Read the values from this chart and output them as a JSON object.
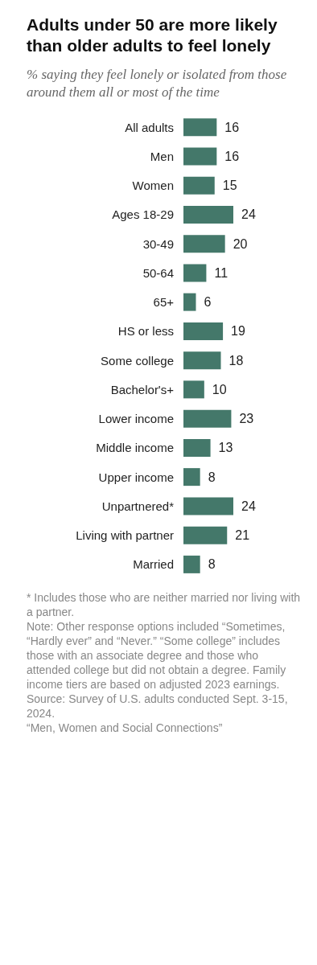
{
  "chart_data": {
    "type": "bar",
    "orientation": "horizontal",
    "title": "Adults under 50 are more likely than older adults to feel lonely",
    "subtitle": "% saying they feel lonely or isolated from those around them all or most of the time",
    "categories": [
      "All adults",
      "Men",
      "Women",
      "Ages 18-29",
      "30-49",
      "50-64",
      "65+",
      "HS or less",
      "Some college",
      "Bachelor's+",
      "Lower income",
      "Middle income",
      "Upper income",
      "Unpartnered*",
      "Living with partner",
      "Married"
    ],
    "values": [
      16,
      16,
      15,
      24,
      20,
      11,
      6,
      19,
      18,
      10,
      23,
      13,
      8,
      24,
      21,
      8
    ],
    "color": "#44786a",
    "data_labels": true,
    "tick_labels": "y",
    "annotations": [
      "* Includes those who are neither married nor living with a partner.",
      "Note: Other response options included “Sometimes, “Hardly ever” and “Never.” “Some college” includes those with an associate degree and those who attended college but did not obtain a degree. Family income tiers are based on adjusted 2023 earnings.",
      "Source: Survey of U.S. adults conducted Sept. 3-15, 2024.",
      "“Men, Women and Social Connections”"
    ]
  }
}
